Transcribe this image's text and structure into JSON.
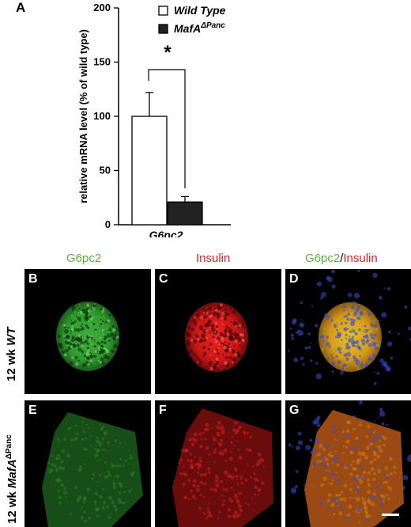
{
  "figure": {
    "panel_a_letter": "A",
    "chart_data": {
      "type": "bar",
      "categories": [
        "G6pc2"
      ],
      "series": [
        {
          "name": "Wild Type",
          "values": [
            100
          ],
          "error": [
            22
          ],
          "color": "#ffffff"
        },
        {
          "name": "MafA",
          "name_superscript": "ΔPanc",
          "values": [
            21
          ],
          "error": [
            5
          ],
          "color": "#222222"
        }
      ],
      "ylabel": "relative mRNA level (% of wild type)",
      "ylim": [
        0,
        200
      ],
      "yticks": [
        "0",
        "50",
        "100",
        "150",
        "200"
      ],
      "significance": "*",
      "legend_position": "top"
    },
    "columns": {
      "g6pc2": "G6pc2",
      "insulin": "Insulin",
      "merge_a": "G6pc2",
      "merge_sep": "/",
      "merge_b": "Insulin"
    },
    "rows": {
      "top_prefix": "12 wk ",
      "top_genotype": "WT",
      "bottom_prefix": "12 wk ",
      "bottom_genotype": "MafA",
      "bottom_superscript": "ΔPanc"
    },
    "panels": {
      "b": "B",
      "c": "C",
      "d": "D",
      "e": "E",
      "f": "F",
      "g": "G"
    },
    "colors": {
      "g6pc2_green": "#5ab43c",
      "insulin_red": "#e02020",
      "dapi_blue": "#3a4fd0"
    }
  }
}
